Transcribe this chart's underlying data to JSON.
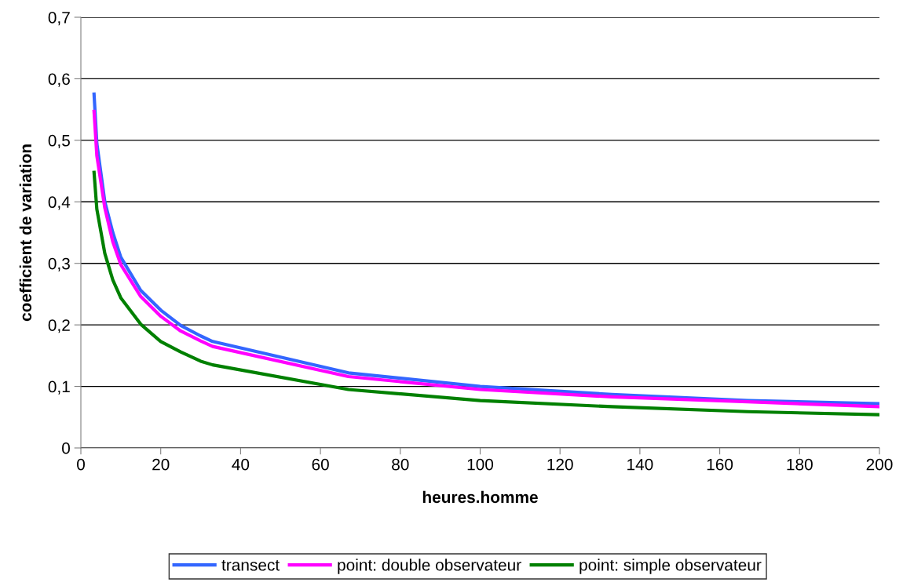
{
  "chart_data": {
    "type": "line",
    "xlabel": "heures.homme",
    "ylabel": "coefficient de variation",
    "x": [
      3.3,
      4,
      6,
      8,
      10,
      15,
      20,
      25,
      30,
      33,
      67,
      100,
      133,
      167,
      200
    ],
    "series": [
      {
        "name": "transect",
        "color": "#3366ff",
        "values": [
          0.575,
          0.495,
          0.4,
          0.35,
          0.31,
          0.256,
          0.224,
          0.199,
          0.182,
          0.173,
          0.122,
          0.1,
          0.087,
          0.077,
          0.072
        ]
      },
      {
        "name": "point: double observateur",
        "color": "#ff00ff",
        "values": [
          0.547,
          0.475,
          0.39,
          0.335,
          0.298,
          0.246,
          0.214,
          0.19,
          0.174,
          0.165,
          0.116,
          0.095,
          0.083,
          0.075,
          0.067
        ]
      },
      {
        "name": "point: simple observateur",
        "color": "#008000",
        "values": [
          0.448,
          0.388,
          0.316,
          0.273,
          0.244,
          0.201,
          0.173,
          0.156,
          0.141,
          0.135,
          0.095,
          0.077,
          0.067,
          0.059,
          0.054
        ]
      }
    ],
    "xlim": [
      0,
      200
    ],
    "xticks": [
      0,
      20,
      40,
      60,
      80,
      100,
      120,
      140,
      160,
      180,
      200
    ],
    "ylim": [
      0,
      0.7
    ],
    "yticks": [
      0,
      {
        "value": 0.1,
        "label": "0,1"
      },
      {
        "value": 0.2,
        "label": "0,2"
      },
      {
        "value": 0.3,
        "label": "0,3"
      },
      {
        "value": 0.4,
        "label": "0,4"
      },
      {
        "value": 0.5,
        "label": "0,5"
      },
      {
        "value": 0.6,
        "label": "0,6"
      },
      {
        "value": 0.7,
        "label": "0,7"
      }
    ],
    "grid": "y",
    "legend": "bottom",
    "marker": "none",
    "line_style": "solid"
  }
}
